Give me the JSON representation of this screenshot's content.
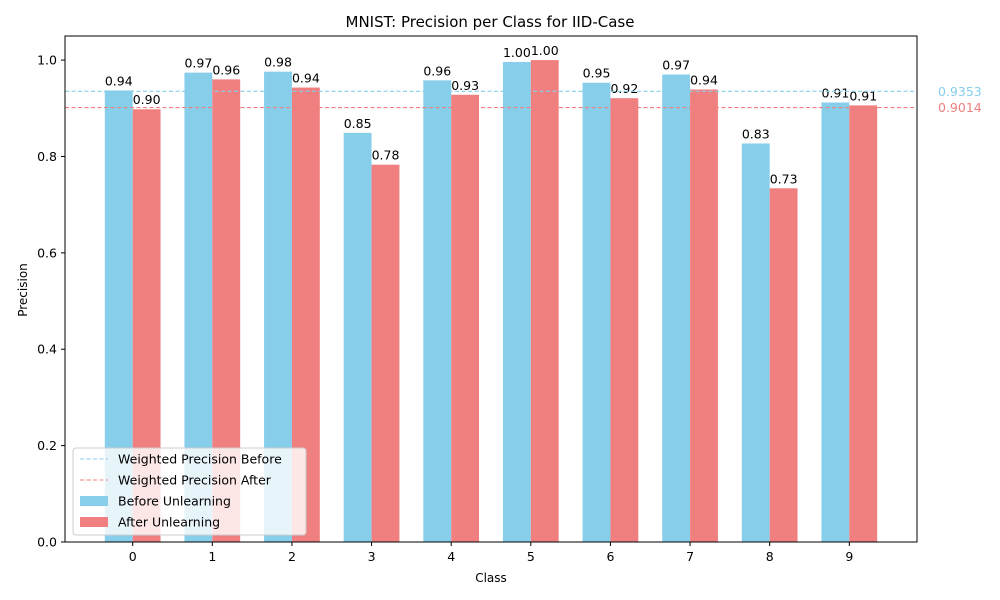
{
  "chart_data": {
    "type": "bar",
    "title": "MNIST: Precision per Class for IID-Case",
    "xlabel": "Class",
    "ylabel": "Precision",
    "categories": [
      "0",
      "1",
      "2",
      "3",
      "4",
      "5",
      "6",
      "7",
      "8",
      "9"
    ],
    "series": [
      {
        "name": "Before Unlearning",
        "color": "#87ceeb",
        "values": [
          0.937,
          0.974,
          0.976,
          0.849,
          0.958,
          0.996,
          0.953,
          0.97,
          0.827,
          0.912
        ],
        "labels": [
          "0.94",
          "0.97",
          "0.98",
          "0.85",
          "0.96",
          "1.00",
          "0.95",
          "0.97",
          "0.83",
          "0.91"
        ]
      },
      {
        "name": "After Unlearning",
        "color": "#f08080",
        "values": [
          0.898,
          0.96,
          0.943,
          0.783,
          0.928,
          1.0,
          0.921,
          0.939,
          0.734,
          0.906
        ],
        "labels": [
          "0.90",
          "0.96",
          "0.94",
          "0.78",
          "0.93",
          "1.00",
          "0.92",
          "0.94",
          "0.73",
          "0.91"
        ]
      }
    ],
    "reference_lines": [
      {
        "name": "Weighted Precision Before",
        "value": 0.9353,
        "label": "0.9353",
        "color": "#87ceeb",
        "style": "dashed"
      },
      {
        "name": "Weighted Precision After",
        "value": 0.9014,
        "label": "0.9014",
        "color": "#f08080",
        "style": "dashed"
      }
    ],
    "ylim": [
      0,
      1.05
    ],
    "yticks": [
      "0.0",
      "0.2",
      "0.4",
      "0.6",
      "0.8",
      "1.0"
    ],
    "ytick_values": [
      0,
      0.2,
      0.4,
      0.6,
      0.8,
      1.0
    ],
    "grid": false,
    "legend": {
      "placement": "lower-left",
      "entries": [
        "Weighted Precision Before",
        "Weighted Precision After",
        "Before Unlearning",
        "After Unlearning"
      ]
    }
  }
}
